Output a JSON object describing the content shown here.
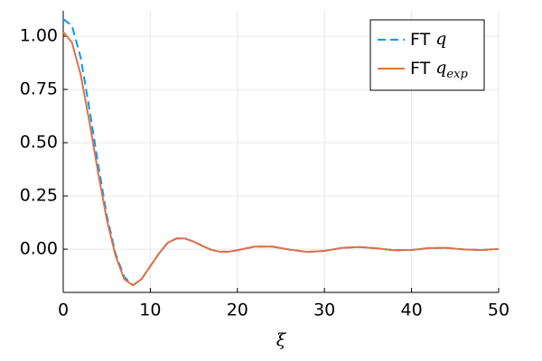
{
  "chart_data": {
    "type": "line",
    "xlabel": "ξ",
    "x": [
      0,
      1,
      2,
      3,
      4,
      5,
      6,
      7,
      8,
      9,
      10,
      11,
      12,
      13,
      14,
      15,
      16,
      17,
      18,
      19,
      20,
      22,
      24,
      26,
      28,
      30,
      32,
      34,
      36,
      38,
      40,
      42,
      44,
      46,
      48,
      50
    ],
    "series": [
      {
        "name": "FT q",
        "color": "#009af9",
        "dash": true,
        "values": [
          1.08,
          1.05,
          0.9,
          0.66,
          0.4,
          0.16,
          -0.02,
          -0.13,
          -0.17,
          -0.14,
          -0.08,
          -0.02,
          0.03,
          0.05,
          0.05,
          0.035,
          0.015,
          -0.003,
          -0.012,
          -0.012,
          -0.005,
          0.012,
          0.012,
          -0.002,
          -0.013,
          -0.008,
          0.006,
          0.01,
          0.004,
          -0.005,
          -0.004,
          0.005,
          0.006,
          -0.001,
          -0.004,
          0.001
        ]
      },
      {
        "name": "FT q_exp",
        "color": "#e26f46",
        "dash": false,
        "values": [
          1.02,
          0.97,
          0.82,
          0.6,
          0.36,
          0.14,
          -0.03,
          -0.14,
          -0.17,
          -0.14,
          -0.08,
          -0.02,
          0.03,
          0.05,
          0.05,
          0.035,
          0.015,
          -0.003,
          -0.012,
          -0.012,
          -0.005,
          0.012,
          0.012,
          -0.002,
          -0.013,
          -0.008,
          0.006,
          0.01,
          0.004,
          -0.005,
          -0.004,
          0.005,
          0.006,
          -0.001,
          -0.004,
          0.001
        ]
      }
    ],
    "xlim": [
      0,
      50
    ],
    "xticks": [
      0,
      10,
      20,
      30,
      40,
      50
    ],
    "ylim": [
      -0.203,
      1.119
    ],
    "yticks": [
      {
        "value": 0,
        "label": "0.00"
      },
      {
        "value": 0.25,
        "label": "0.25"
      },
      {
        "value": 0.5,
        "label": "0.50"
      },
      {
        "value": 0.75,
        "label": "0.75"
      },
      {
        "value": 1,
        "label": "1.00"
      }
    ],
    "grid": true,
    "legend": "top right"
  }
}
